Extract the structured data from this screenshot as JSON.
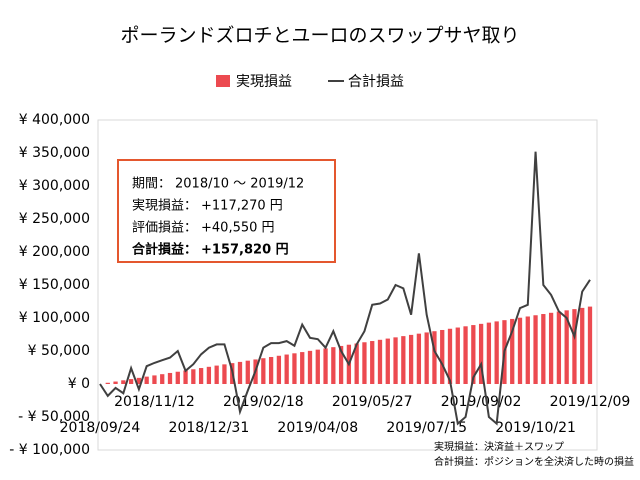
{
  "chart_data": {
    "type": "bar-line",
    "title": "ポーランドズロチとユーロのスワップサヤ取り",
    "categories": [
      "2018/09/24",
      null,
      null,
      null,
      null,
      null,
      null,
      "2018/11/12",
      null,
      null,
      null,
      null,
      null,
      null,
      "2018/12/31",
      null,
      null,
      null,
      null,
      null,
      null,
      "2019/02/18",
      null,
      null,
      null,
      null,
      null,
      null,
      "2019/04/08",
      null,
      null,
      null,
      null,
      null,
      null,
      "2019/05/27",
      null,
      null,
      null,
      null,
      null,
      null,
      "2019/07/15",
      null,
      null,
      null,
      null,
      null,
      null,
      "2019/09/02",
      null,
      null,
      null,
      null,
      null,
      null,
      "2019/10/21",
      null,
      null,
      null,
      null,
      null,
      null,
      "2019/12/09"
    ],
    "series": [
      {
        "name": "実現損益",
        "kind": "bar",
        "color": "#ec4a50",
        "values": [
          0,
          1860,
          3720,
          5580,
          7440,
          9300,
          11160,
          13020,
          14880,
          16740,
          18600,
          20460,
          22320,
          24180,
          26040,
          27900,
          29760,
          31620,
          33480,
          35340,
          37200,
          39060,
          40920,
          42780,
          44640,
          46500,
          48360,
          50220,
          52080,
          53940,
          55800,
          57660,
          59520,
          61380,
          63240,
          65100,
          66960,
          68820,
          70680,
          72540,
          74400,
          76260,
          78120,
          79980,
          81840,
          83700,
          85560,
          87420,
          89280,
          91140,
          93000,
          94860,
          96720,
          98580,
          100440,
          102300,
          104160,
          106020,
          107880,
          109740,
          111600,
          113460,
          115320,
          117270
        ]
      },
      {
        "name": "合計損益",
        "kind": "line",
        "color": "#404040",
        "values": [
          0,
          -18000,
          -6000,
          -14000,
          24000,
          -8000,
          27000,
          32000,
          36000,
          40000,
          50000,
          20000,
          30000,
          45000,
          55000,
          60000,
          60000,
          20000,
          -42000,
          -10000,
          20000,
          55000,
          62000,
          62000,
          65000,
          58000,
          90000,
          70000,
          68000,
          55000,
          80000,
          50000,
          30000,
          60000,
          80000,
          120000,
          122000,
          128000,
          150000,
          145000,
          105000,
          198000,
          105000,
          50000,
          30000,
          5000,
          -60000,
          -50000,
          10000,
          30000,
          -50000,
          -60000,
          50000,
          80000,
          115000,
          120000,
          352000,
          150000,
          135000,
          110000,
          100000,
          72000,
          140000,
          157820
        ]
      }
    ],
    "ylim": [
      -100000,
      400000
    ],
    "yticks": [
      {
        "value": -100000,
        "label": "- ¥ 100,000"
      },
      {
        "value": -50000,
        "label": "- ¥ 50,000"
      },
      {
        "value": 0,
        "label": "¥ 0"
      },
      {
        "value": 50000,
        "label": "¥ 50,000"
      },
      {
        "value": 100000,
        "label": "¥ 100,000"
      },
      {
        "value": 150000,
        "label": "¥ 150,000"
      },
      {
        "value": 200000,
        "label": "¥ 200,000"
      },
      {
        "value": 250000,
        "label": "¥ 250,000"
      },
      {
        "value": 300000,
        "label": "¥ 300,000"
      },
      {
        "value": 350000,
        "label": "¥ 350,000"
      },
      {
        "value": 400000,
        "label": "¥ 400,000"
      }
    ],
    "negative_tick_color": "#e00000",
    "grid": false,
    "legend": "top",
    "summary": [
      {
        "label": "期間：",
        "value": "2018/10 〜 2019/12"
      },
      {
        "label": "実現損益：",
        "value": "+117,270 円"
      },
      {
        "label": "評価損益：",
        "value": "+40,550 円"
      },
      {
        "label": "合計損益：",
        "value": "+157,820 円"
      }
    ],
    "notes": [
      "実現損益：決済益＋スワップ",
      "合計損益：ポジションを全決済した時の損益"
    ]
  }
}
